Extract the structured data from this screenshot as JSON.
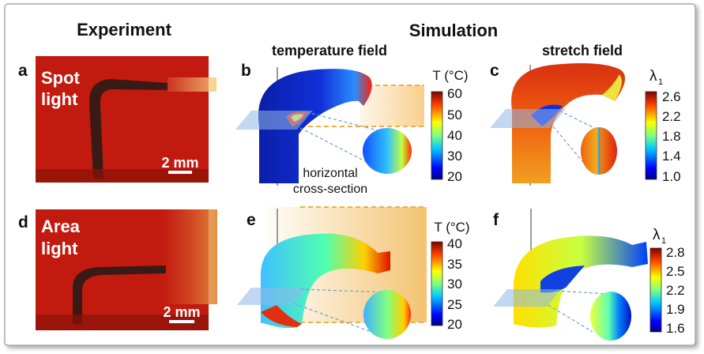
{
  "headers": {
    "experiment": "Experiment",
    "simulation": "Simulation"
  },
  "subheaders": {
    "temperature": "temperature field",
    "stretch": "stretch field"
  },
  "panels": {
    "a": {
      "letter": "a",
      "label_line1": "Spot",
      "label_line2": "light",
      "scale_bar": "2 mm"
    },
    "b": {
      "letter": "b"
    },
    "c": {
      "letter": "c"
    },
    "d": {
      "letter": "d",
      "label_line1": "Area",
      "label_line2": "light",
      "scale_bar": "2 mm"
    },
    "e": {
      "letter": "e"
    },
    "f": {
      "letter": "f"
    }
  },
  "annotation": {
    "line1": "horizontal",
    "line2": "cross-section"
  },
  "colorbars": {
    "b": {
      "title": "T (°C)",
      "ticks": [
        "60",
        "50",
        "40",
        "30",
        "20"
      ]
    },
    "c": {
      "title_main": "λ",
      "title_sub": "1",
      "ticks": [
        "2.6",
        "2.2",
        "1.8",
        "1.4",
        "1.0"
      ]
    },
    "e": {
      "title": "T (°C)",
      "ticks": [
        "40",
        "35",
        "30",
        "25",
        "20"
      ]
    },
    "f": {
      "title_main": "λ",
      "title_sub": "1",
      "ticks": [
        "2.8",
        "2.5",
        "2.2",
        "1.9",
        "1.6"
      ]
    }
  },
  "colors": {
    "experiment_background": "#c21a0f",
    "jet": [
      "#00007f",
      "#0000ff",
      "#00a0ff",
      "#00ffff",
      "#7fff7f",
      "#ffff00",
      "#ff8000",
      "#ff0000",
      "#7f0000"
    ],
    "light_beam": "#f7c77a"
  }
}
